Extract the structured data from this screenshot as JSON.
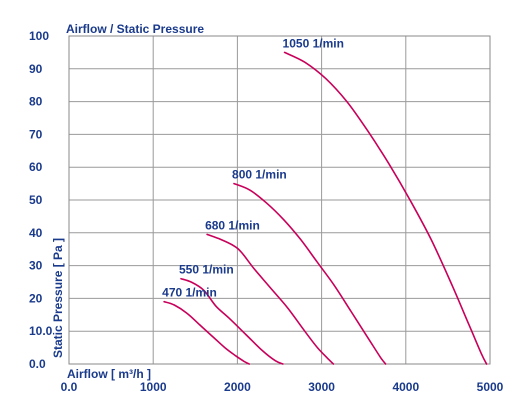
{
  "chart_data": {
    "type": "line",
    "title": "Airflow / Static Pressure",
    "xlabel": "Airflow [ m³/h ]",
    "ylabel": "Static Pressure [ Pa ]",
    "xlim": [
      0,
      5000
    ],
    "ylim": [
      0,
      100
    ],
    "x_ticks": [
      "0.0",
      "1000",
      "2000",
      "3000",
      "4000",
      "5000"
    ],
    "x_tick_values": [
      0,
      1000,
      2000,
      3000,
      4000,
      5000
    ],
    "y_ticks": [
      "0.0",
      "10.0",
      "20",
      "30",
      "40",
      "50",
      "60",
      "70",
      "80",
      "90",
      "100"
    ],
    "y_tick_values": [
      0,
      10,
      20,
      30,
      40,
      50,
      60,
      70,
      80,
      90,
      100
    ],
    "grid": true,
    "line_color": "#c8005a",
    "text_color": "#1a3a8c",
    "series": [
      {
        "name": "1050 1/min",
        "x": [
          2560,
          2800,
          3050,
          3300,
          3550,
          3800,
          4050,
          4300,
          4550,
          4750,
          4900,
          4960
        ],
        "y": [
          95,
          92,
          87,
          80,
          71,
          61,
          50,
          38,
          24,
          12,
          3,
          0
        ]
      },
      {
        "name": "800 1/min",
        "x": [
          1960,
          2150,
          2350,
          2550,
          2750,
          2950,
          3150,
          3350,
          3550,
          3700,
          3760
        ],
        "y": [
          55,
          53,
          49,
          44,
          38,
          31,
          24,
          16,
          8,
          2,
          0
        ]
      },
      {
        "name": "680 1/min",
        "x": [
          1640,
          1800,
          1960,
          2050,
          2200,
          2400,
          2600,
          2800,
          2950,
          3080,
          3140
        ],
        "y": [
          39.5,
          38,
          36,
          34,
          29,
          23,
          17,
          10,
          5,
          1.5,
          0
        ]
      },
      {
        "name": "550 1/min",
        "x": [
          1330,
          1450,
          1600,
          1750,
          1900,
          2100,
          2300,
          2450,
          2540
        ],
        "y": [
          26,
          25,
          22.5,
          17.5,
          14,
          9,
          4,
          1,
          0
        ]
      },
      {
        "name": "470 1/min",
        "x": [
          1130,
          1250,
          1400,
          1550,
          1700,
          1850,
          1980,
          2080,
          2140
        ],
        "y": [
          19,
          18,
          15.5,
          12,
          8.5,
          5,
          2.5,
          0.8,
          0
        ]
      }
    ]
  }
}
